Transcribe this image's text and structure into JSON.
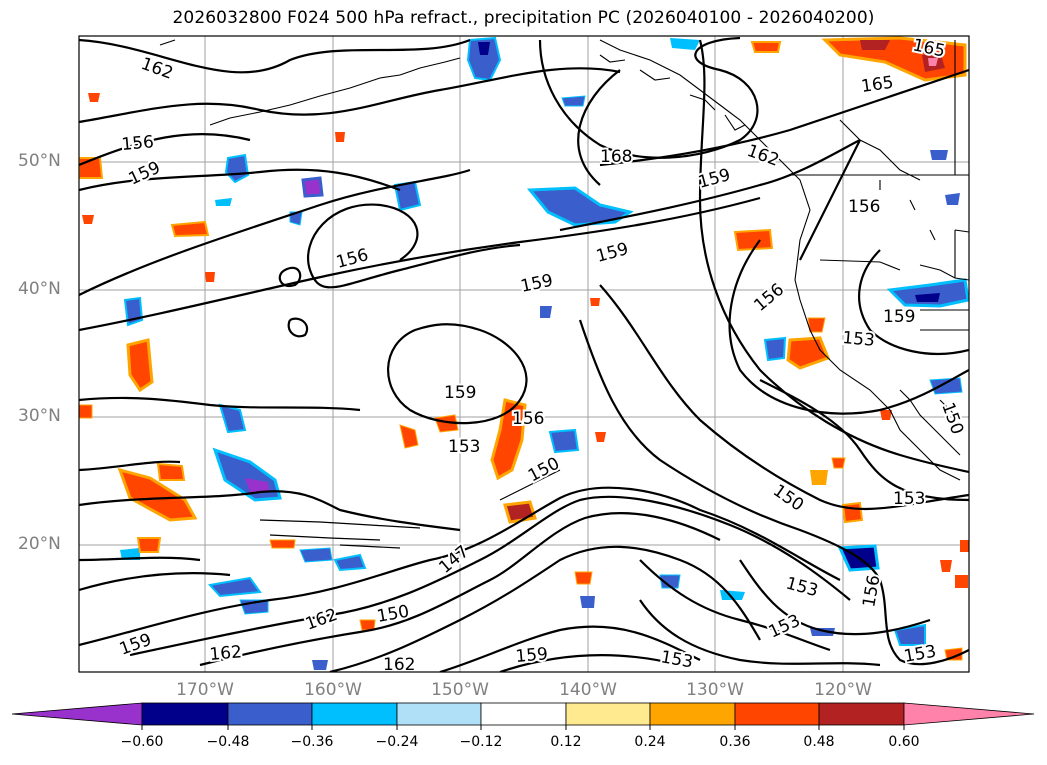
{
  "title": "2026032800 F024 500 hPa refract., precipitation PC (2026040100 - 2026040200)",
  "map": {
    "lat_labels": [
      "50°N",
      "40°N",
      "30°N",
      "20°N"
    ],
    "lon_labels": [
      "170°W",
      "160°W",
      "150°W",
      "140°W",
      "130°W",
      "120°W"
    ],
    "gridline_color": "#a0a0a0",
    "contour_color": "#000000",
    "contour_labels": [
      "162",
      "156",
      "159",
      "168",
      "165",
      "165",
      "162",
      "159",
      "156",
      "156",
      "159",
      "159",
      "156",
      "153",
      "159",
      "159",
      "153",
      "156",
      "150",
      "150",
      "150",
      "153",
      "147",
      "153",
      "156",
      "162",
      "150",
      "159",
      "162",
      "162",
      "159",
      "153",
      "153"
    ]
  },
  "colorbar": {
    "ticks": [
      "−0.60",
      "−0.48",
      "−0.36",
      "−0.24",
      "−0.12",
      "0.12",
      "0.24",
      "0.36",
      "0.48",
      "0.60"
    ],
    "colors": [
      "#9932cc",
      "#00008b",
      "#3a5fcd",
      "#00bfff",
      "#b0e0f8",
      "#ffffff",
      "#ffea90",
      "#ffa500",
      "#ff4500",
      "#b22222",
      "#ff82ab"
    ]
  }
}
